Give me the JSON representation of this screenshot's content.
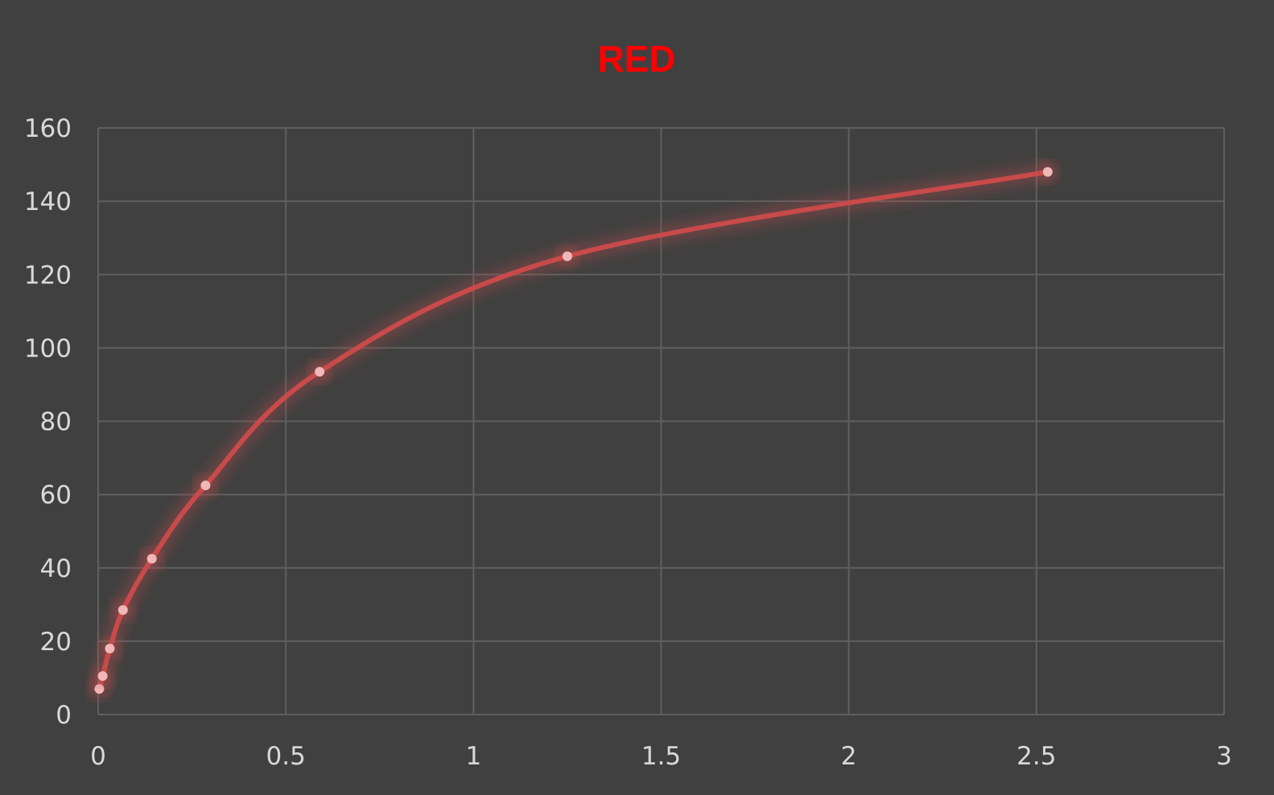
{
  "chart_data": {
    "type": "scatter",
    "title": "RED",
    "title_color": "#ff0000",
    "line_color": "#c84a4a",
    "marker_color": "#f1b7b7",
    "background_color": "#404040",
    "grid_color": "#5f5f5f",
    "tick_label_color": "#d9d9d9",
    "smoothed_line": true,
    "glow_effect": true,
    "grid": true,
    "legend": "none",
    "xlabel": "",
    "ylabel": "",
    "xlim": [
      0,
      3
    ],
    "ylim": [
      0,
      160
    ],
    "x_ticks": [
      "0",
      "0.5",
      "1",
      "1.5",
      "2",
      "2.5",
      "3"
    ],
    "y_ticks": [
      "0",
      "20",
      "40",
      "60",
      "80",
      "100",
      "120",
      "140",
      "160"
    ],
    "series": [
      {
        "x": [
          0.003,
          0.012,
          0.031,
          0.066,
          0.143,
          0.286,
          0.59,
          1.25,
          2.53
        ],
        "y": [
          7,
          10.5,
          18,
          28.5,
          42.5,
          62.5,
          93.5,
          125,
          148
        ]
      }
    ]
  }
}
